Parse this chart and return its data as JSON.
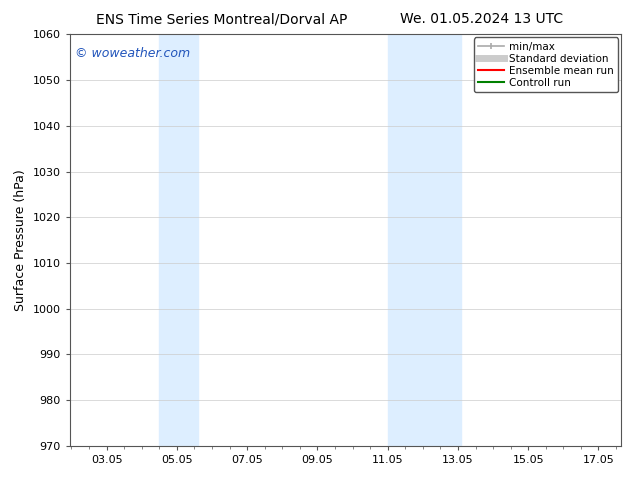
{
  "title_left": "ENS Time Series Montreal/Dorval AP",
  "title_right": "We. 01.05.2024 13 UTC",
  "ylabel": "Surface Pressure (hPa)",
  "xlim": [
    2.0,
    17.7
  ],
  "ylim": [
    970,
    1060
  ],
  "yticks": [
    970,
    980,
    990,
    1000,
    1010,
    1020,
    1030,
    1040,
    1050,
    1060
  ],
  "xticks": [
    3.05,
    5.05,
    7.05,
    9.05,
    11.05,
    13.05,
    15.05,
    17.05
  ],
  "xtick_labels": [
    "03.05",
    "05.05",
    "07.05",
    "09.05",
    "11.05",
    "13.05",
    "15.05",
    "17.05"
  ],
  "shaded_bands": [
    {
      "xmin": 4.55,
      "xmax": 5.65
    },
    {
      "xmin": 11.05,
      "xmax": 13.15
    }
  ],
  "band_color": "#ddeeff",
  "background_color": "#ffffff",
  "watermark_text": "© woweather.com",
  "watermark_color": "#2255bb",
  "legend_entries": [
    {
      "label": "min/max",
      "color": "#aaaaaa",
      "lw": 1.2,
      "style": "line_with_caps"
    },
    {
      "label": "Standard deviation",
      "color": "#cccccc",
      "lw": 5
    },
    {
      "label": "Ensemble mean run",
      "color": "red",
      "lw": 1.5
    },
    {
      "label": "Controll run",
      "color": "green",
      "lw": 1.5
    }
  ],
  "title_fontsize": 10,
  "tick_fontsize": 8,
  "ylabel_fontsize": 9,
  "watermark_fontsize": 9,
  "legend_fontsize": 7.5,
  "grid_color": "#cccccc",
  "spine_color": "#555555"
}
